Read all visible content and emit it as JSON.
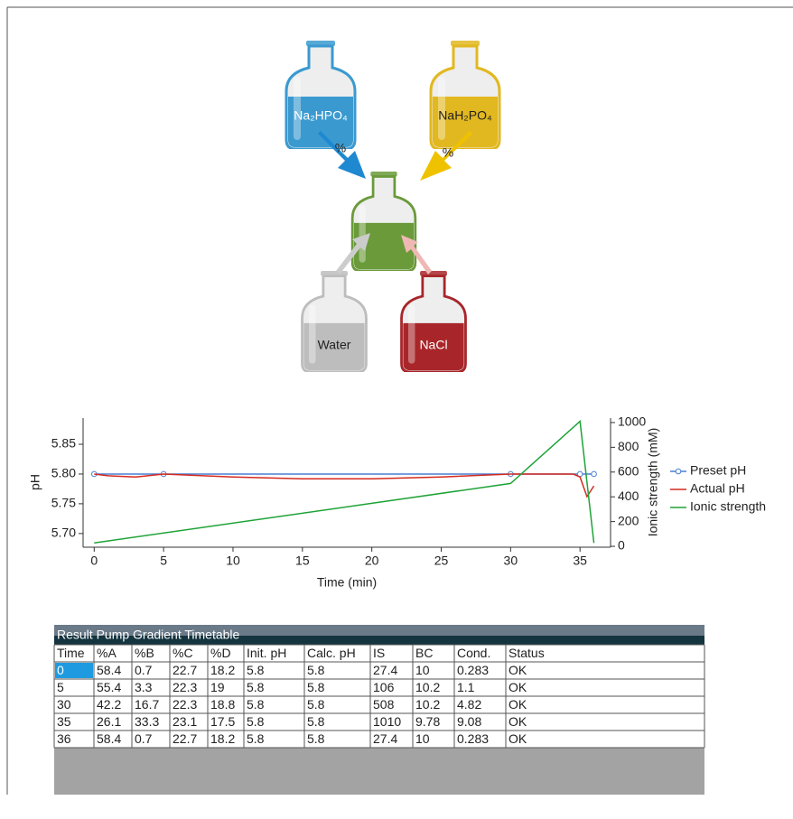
{
  "diagram": {
    "flasks": [
      {
        "label": "Na₂HPO₄"
      },
      {
        "label": "NaH₂PO₄"
      },
      {
        "label": "Water"
      },
      {
        "label": "NaCl"
      }
    ],
    "arrow_labels": [
      "%",
      "%"
    ]
  },
  "chart_data": {
    "type": "line",
    "x_label": "Time (min)",
    "y_label": "pH",
    "y2_label": "Ionic strength (mM)",
    "xlim": [
      -0.8,
      37.2
    ],
    "xticks": [
      0,
      5,
      10,
      15,
      20,
      25,
      30,
      35
    ],
    "ylim": [
      5.677,
      5.894
    ],
    "yticks": [
      {
        "value": 5.7,
        "label": "5.70"
      },
      {
        "value": 5.75,
        "label": "5.75"
      },
      {
        "value": 5.8,
        "label": "5.80"
      },
      {
        "value": 5.85,
        "label": "5.85"
      }
    ],
    "y2lim": [
      -7,
      1036
    ],
    "y2ticks": [
      0,
      200,
      400,
      600,
      800,
      1000
    ],
    "legend": "right",
    "series": [
      {
        "name": "Preset pH",
        "color": "#4a7fd4",
        "markers": true,
        "x": [
          0,
          5,
          30,
          35,
          36
        ],
        "values": [
          5.8,
          5.8,
          5.8,
          5.8,
          5.8
        ]
      },
      {
        "name": "Actual pH",
        "color": "#d42a1f",
        "markers": false,
        "x": [
          0,
          1,
          3,
          5,
          10,
          15,
          20,
          25,
          30,
          33,
          34.5,
          35,
          35.5,
          36
        ],
        "values": [
          5.8,
          5.797,
          5.795,
          5.8,
          5.795,
          5.792,
          5.792,
          5.795,
          5.8,
          5.8,
          5.8,
          5.795,
          5.762,
          5.78
        ]
      },
      {
        "name": "Ionic strength",
        "color": "#1fa337",
        "markers": false,
        "axis": "y2",
        "x": [
          0,
          30,
          35,
          36
        ],
        "values": [
          27.4,
          508,
          1010,
          27.4
        ]
      }
    ]
  },
  "table": {
    "title": "Result Pump Gradient Timetable",
    "columns": [
      "Time",
      "%A",
      "%B",
      "%C",
      "%D",
      "Init. pH",
      "Calc. pH",
      "IS",
      "BC",
      "Cond.",
      "Status"
    ],
    "rows": [
      [
        0,
        58.4,
        0.7,
        22.7,
        18.2,
        5.8,
        5.8,
        27.4,
        10,
        0.283,
        "OK"
      ],
      [
        5,
        55.4,
        3.3,
        22.3,
        19,
        5.8,
        5.8,
        106,
        10.2,
        1.1,
        "OK"
      ],
      [
        30,
        42.2,
        16.7,
        22.3,
        18.8,
        5.8,
        5.8,
        508,
        10.2,
        4.82,
        "OK"
      ],
      [
        35,
        26.1,
        33.3,
        23.1,
        17.5,
        5.8,
        5.8,
        1010,
        9.78,
        9.08,
        "OK"
      ],
      [
        36,
        58.4,
        0.7,
        22.7,
        18.2,
        5.8,
        5.8,
        27.4,
        10,
        0.283,
        "OK"
      ]
    ]
  }
}
